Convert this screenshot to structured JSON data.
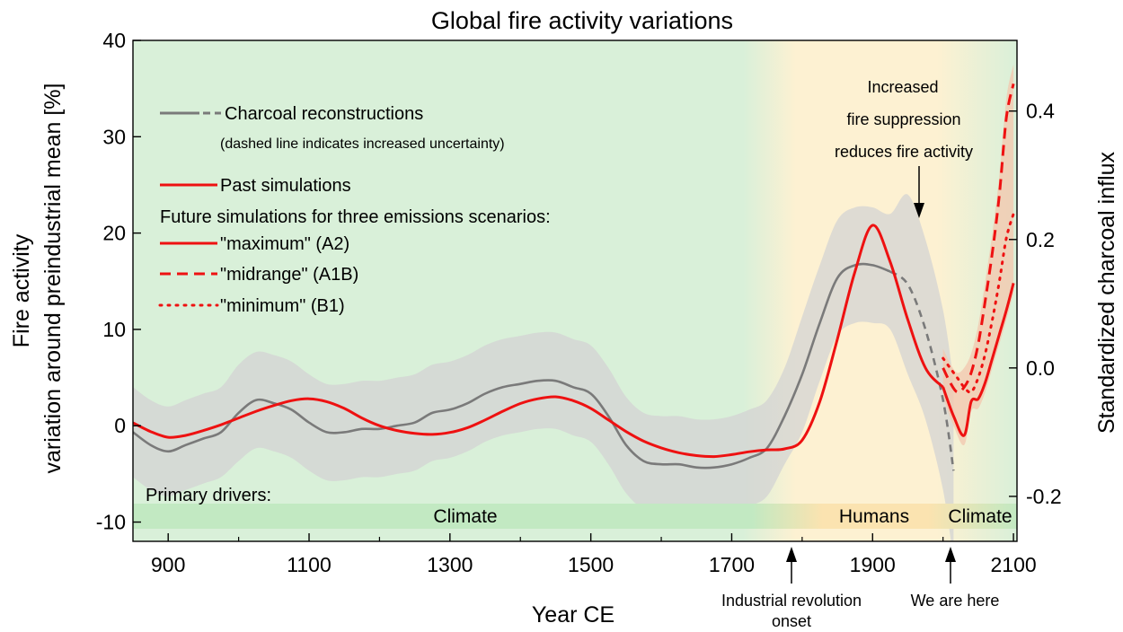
{
  "colors": {
    "climate_bg": "#d9f0d9",
    "humans_bg": "#fdf1d2",
    "band_gray": "#d3d3d3",
    "charcoal": "#7a7a7a",
    "simulation": "#ee1111",
    "future_range": "#f2c9b0"
  },
  "chart_data": {
    "type": "line",
    "title": "Global fire activity variations",
    "xlabel": "Year CE",
    "ylabel_line1": "Fire activity",
    "ylabel_line2": "variation around preindustrial mean [%]",
    "y2label": "Standardized charcoal influx",
    "xlim": [
      850,
      2105
    ],
    "ylim": [
      -12,
      40
    ],
    "y2lim": [
      -0.27,
      0.51
    ],
    "x_ticks": [
      "900",
      "1100",
      "1300",
      "1500",
      "1700",
      "1900",
      "2100"
    ],
    "y_ticks": [
      "-10",
      "0",
      "10",
      "20",
      "30",
      "40"
    ],
    "y2_ticks": [
      "-0.2",
      "0.0",
      "0.2",
      "0.4"
    ],
    "grid": false,
    "legend": {
      "placement": "top-left",
      "charcoal": "Charcoal reconstructions",
      "charcoal_note": "(dashed line indicates increased uncertainty)",
      "past": "Past simulations",
      "future_heading": "Future simulations for three emissions scenarios:",
      "maximum": "\"maximum\" (A2)",
      "midrange": "\"midrange\" (A1B)",
      "minimum": "\"minimum\" (B1)"
    },
    "drivers": {
      "heading": "Primary drivers:",
      "climate": "Climate",
      "humans": "Humans",
      "climate_future": "Climate"
    },
    "annotations": {
      "suppression": [
        "Increased",
        "fire suppression",
        "reduces fire activity"
      ],
      "industrial": [
        "Industrial revolution",
        "onset"
      ],
      "here": "We are here"
    },
    "series": [
      {
        "name": "Charcoal reconstructions",
        "axis": "y2",
        "style": "solid",
        "x": [
          850,
          875,
          900,
          925,
          950,
          975,
          1000,
          1025,
          1050,
          1075,
          1100,
          1125,
          1150,
          1175,
          1200,
          1225,
          1250,
          1275,
          1300,
          1325,
          1350,
          1375,
          1400,
          1425,
          1450,
          1475,
          1500,
          1525,
          1550,
          1575,
          1600,
          1625,
          1650,
          1675,
          1700,
          1725,
          1750,
          1775,
          1800,
          1825,
          1850,
          1875,
          1900,
          1925
        ],
        "values": [
          -0.1,
          -0.12,
          -0.13,
          -0.12,
          -0.11,
          -0.1,
          -0.07,
          -0.05,
          -0.055,
          -0.065,
          -0.085,
          -0.1,
          -0.1,
          -0.095,
          -0.095,
          -0.09,
          -0.085,
          -0.07,
          -0.065,
          -0.055,
          -0.04,
          -0.03,
          -0.025,
          -0.02,
          -0.02,
          -0.03,
          -0.04,
          -0.075,
          -0.12,
          -0.145,
          -0.15,
          -0.15,
          -0.155,
          -0.155,
          -0.15,
          -0.14,
          -0.125,
          -0.075,
          -0.01,
          0.07,
          0.14,
          0.16,
          0.16,
          0.15
        ]
      },
      {
        "name": "Charcoal reconstructions",
        "axis": "y2",
        "style": "dashed",
        "x": [
          1925,
          1950,
          1975,
          2000,
          2015
        ],
        "values": [
          0.15,
          0.13,
          0.06,
          -0.05,
          -0.16
        ]
      },
      {
        "name": "Past simulations",
        "axis": "y",
        "style": "solid",
        "x": [
          850,
          875,
          900,
          925,
          950,
          975,
          1000,
          1025,
          1050,
          1075,
          1100,
          1125,
          1150,
          1175,
          1200,
          1225,
          1250,
          1275,
          1300,
          1325,
          1350,
          1375,
          1400,
          1425,
          1450,
          1475,
          1500,
          1525,
          1550,
          1575,
          1600,
          1625,
          1650,
          1675,
          1700,
          1725,
          1750,
          1775,
          1800,
          1825,
          1850,
          1875,
          1900,
          1925,
          1950,
          1975,
          2000
        ],
        "values": [
          0.3,
          -0.6,
          -1.2,
          -1.0,
          -0.5,
          0.1,
          0.8,
          1.5,
          2.1,
          2.6,
          2.8,
          2.5,
          1.8,
          0.8,
          0.0,
          -0.5,
          -0.8,
          -0.9,
          -0.7,
          -0.2,
          0.6,
          1.5,
          2.3,
          2.8,
          3.0,
          2.6,
          1.8,
          0.6,
          -0.6,
          -1.6,
          -2.3,
          -2.8,
          -3.1,
          -3.2,
          -3.0,
          -2.7,
          -2.5,
          -2.4,
          -1.5,
          2.5,
          9.0,
          16.0,
          20.8,
          17.0,
          11.0,
          6.0,
          4.0
        ]
      },
      {
        "name": "\"maximum\" (A2)",
        "axis": "y",
        "style": "solid",
        "x": [
          2000,
          2015,
          2030,
          2040,
          2050,
          2060,
          2070,
          2080,
          2090,
          2100
        ],
        "values": [
          4.0,
          1.0,
          -1.0,
          2.5,
          2.8,
          4.5,
          7.0,
          9.5,
          12.0,
          14.8
        ]
      },
      {
        "name": "\"midrange\" (A1B)",
        "axis": "y",
        "style": "dashed",
        "x": [
          2000,
          2010,
          2020,
          2030,
          2040,
          2050,
          2060,
          2070,
          2080,
          2090,
          2100
        ],
        "values": [
          6.0,
          4.5,
          3.5,
          4.0,
          5.5,
          8.5,
          13.0,
          18.0,
          24.0,
          32.0,
          35.5
        ]
      },
      {
        "name": "\"minimum\" (B1)",
        "axis": "y",
        "style": "dotted",
        "x": [
          2000,
          2010,
          2020,
          2030,
          2040,
          2050,
          2060,
          2070,
          2080,
          2090,
          2100
        ],
        "values": [
          7.0,
          6.0,
          5.0,
          4.0,
          3.5,
          5.0,
          7.5,
          11.0,
          15.0,
          19.5,
          22.0
        ]
      }
    ]
  }
}
